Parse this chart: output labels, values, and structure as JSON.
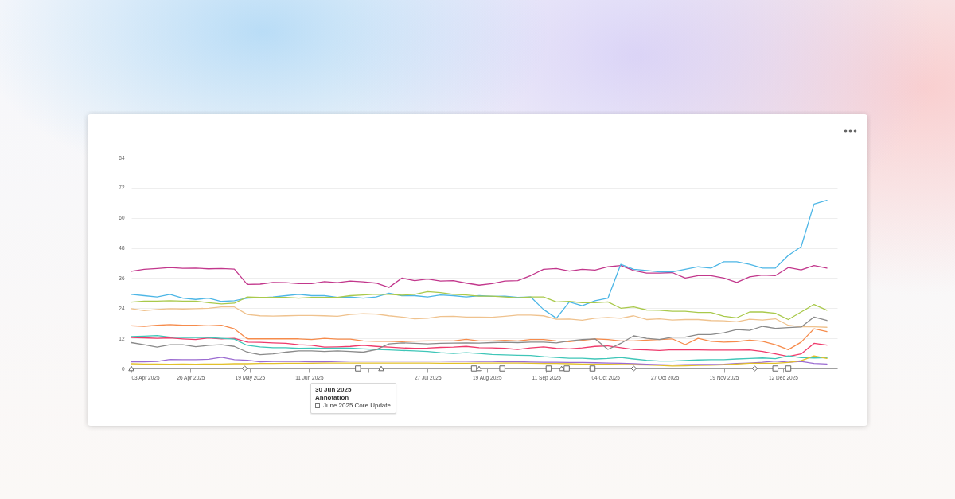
{
  "chart_data": {
    "type": "line",
    "x": [
      "2025-04-03",
      "2025-04-08",
      "2025-04-13",
      "2025-04-18",
      "2025-04-23",
      "2025-04-28",
      "2025-05-03",
      "2025-05-08",
      "2025-05-13",
      "2025-05-18",
      "2025-05-23",
      "2025-05-28",
      "2025-06-02",
      "2025-06-07",
      "2025-06-12",
      "2025-06-17",
      "2025-06-22",
      "2025-06-27",
      "2025-07-02",
      "2025-07-07",
      "2025-07-12",
      "2025-07-17",
      "2025-07-22",
      "2025-07-27",
      "2025-08-01",
      "2025-08-06",
      "2025-08-11",
      "2025-08-16",
      "2025-08-21",
      "2025-08-26",
      "2025-08-31",
      "2025-09-05",
      "2025-09-10",
      "2025-09-15",
      "2025-09-20",
      "2025-09-25",
      "2025-09-30",
      "2025-10-05",
      "2025-10-10",
      "2025-10-15",
      "2025-10-20",
      "2025-10-25",
      "2025-10-30",
      "2025-11-04",
      "2025-11-09",
      "2025-11-14",
      "2025-11-19",
      "2025-11-24",
      "2025-11-29",
      "2025-12-04",
      "2025-12-09",
      "2025-12-14",
      "2025-12-19",
      "2025-12-24",
      "2025-12-29"
    ],
    "series": [
      {
        "color": "#c2378c",
        "values": [
          38.7,
          39.5,
          39.8,
          40.2,
          39.9,
          40,
          39.7,
          39.8,
          39.6,
          33.5,
          33.6,
          34.3,
          34.2,
          33.8,
          33.8,
          34.6,
          34.2,
          34.8,
          34.5,
          34,
          32.3,
          36,
          35,
          35.6,
          34.8,
          35,
          34,
          33.2,
          33.8,
          34.8,
          35,
          37,
          39.5,
          39.8,
          38.8,
          39.5,
          39.2,
          40.5,
          41,
          39,
          38,
          38,
          38.2,
          36,
          37,
          37,
          36,
          34.3,
          36.5,
          37.2,
          37,
          40.2,
          39.3,
          41,
          40
        ]
      },
      {
        "color": "#4db6e6",
        "values": [
          29.5,
          29,
          28.5,
          29.5,
          28,
          27.5,
          28,
          26.7,
          27,
          28,
          28.2,
          28.5,
          29,
          29.5,
          29,
          29,
          28.3,
          28.5,
          28,
          28.5,
          30,
          29,
          29,
          28.5,
          29.3,
          29,
          28.5,
          29,
          28.7,
          28.8,
          28.3,
          28.5,
          23.5,
          20,
          26.5,
          25,
          27,
          28,
          41.5,
          39.5,
          39,
          38.5,
          38.5,
          39.5,
          40.5,
          40,
          42.5,
          42.5,
          41.5,
          40,
          40,
          45,
          48.5,
          65.5,
          67
        ]
      },
      {
        "color": "#a9c94b",
        "values": [
          26.4,
          26.8,
          26.8,
          27,
          26.8,
          26.8,
          26.2,
          25.7,
          26,
          28.5,
          28.3,
          28.3,
          28.3,
          28,
          28.3,
          28.3,
          28.3,
          29,
          29.3,
          29.6,
          29.5,
          29.2,
          29.5,
          30.6,
          30.2,
          29.5,
          29.3,
          28.8,
          28.8,
          28.5,
          28.2,
          28.5,
          28.5,
          26.5,
          26.7,
          26.2,
          26.2,
          26.5,
          24,
          24.5,
          23.3,
          23.2,
          22.8,
          22.8,
          22.3,
          22.3,
          20.8,
          20.2,
          22.5,
          22.5,
          22,
          19.5,
          22.5,
          25.5,
          23.2
        ]
      },
      {
        "color": "#efc28e",
        "values": [
          23.8,
          23,
          23.5,
          23.8,
          23.7,
          23.8,
          24,
          24.5,
          24.5,
          21.5,
          21,
          20.9,
          21,
          21.1,
          21.1,
          21,
          20.8,
          21.5,
          21.8,
          21.7,
          21,
          20.5,
          19.8,
          20,
          20.7,
          20.8,
          20.5,
          20.5,
          20.4,
          20.8,
          21.3,
          21.3,
          21,
          19.6,
          19.7,
          19.2,
          20,
          20.3,
          20,
          21,
          19.5,
          19.8,
          19.3,
          19.5,
          19.5,
          19.1,
          19,
          18.6,
          19.6,
          19.3,
          19.8,
          17.2,
          16.6,
          16.6,
          16.4
        ]
      },
      {
        "color": "#f68b4b",
        "values": [
          17,
          16.8,
          17.2,
          17.5,
          17.2,
          17.2,
          17,
          17.2,
          15.8,
          11.8,
          11.8,
          11.8,
          11.8,
          11.8,
          11.5,
          12,
          11.7,
          11.7,
          11,
          10.8,
          10.8,
          10.7,
          10.9,
          11,
          11,
          11,
          11.6,
          11,
          11,
          11.2,
          11,
          11.5,
          11.5,
          11,
          10.7,
          11.2,
          11.8,
          11.5,
          11,
          11,
          11.3,
          11.5,
          11.8,
          9.5,
          12,
          10.8,
          10.5,
          10.7,
          11.3,
          10.8,
          9.5,
          7.5,
          10.5,
          15.8,
          14.7
        ]
      },
      {
        "color": "#ef3a6b",
        "values": [
          12.3,
          12.2,
          12,
          12.2,
          11.8,
          11.5,
          12.2,
          11.8,
          12,
          10.5,
          10.4,
          10.2,
          10,
          9.5,
          9.2,
          8.5,
          8.6,
          8.8,
          9.2,
          8.8,
          8.5,
          8.2,
          8,
          8.1,
          8.4,
          8.5,
          8.8,
          8.3,
          8.2,
          8,
          7.6,
          8.2,
          8.6,
          8,
          7.8,
          8.2,
          8.8,
          9,
          8.3,
          7.6,
          7.4,
          7.2,
          7.5,
          7.4,
          7.4,
          7.3,
          7.3,
          7.3,
          7.4,
          6.8,
          5.8,
          4.8,
          5.8,
          10,
          9.3
        ]
      },
      {
        "color": "#3fc6b8",
        "values": [
          12.7,
          12.9,
          13.1,
          12.5,
          12.3,
          12.3,
          12.3,
          12,
          11.7,
          9.2,
          8.6,
          8.3,
          8.3,
          8,
          8.1,
          8,
          8.1,
          8.1,
          7.8,
          7.6,
          7.4,
          7.2,
          7,
          6.8,
          6.3,
          6,
          6.3,
          6,
          5.6,
          5.4,
          5.3,
          5.2,
          4.7,
          4.4,
          4.1,
          4.1,
          3.8,
          4,
          4.4,
          3.8,
          3.3,
          3,
          3,
          3.2,
          3.4,
          3.5,
          3.5,
          3.8,
          4,
          4.2,
          3.9,
          5,
          4.3,
          4.2,
          4.3
        ]
      },
      {
        "color": "#8a8a8a",
        "values": [
          10.3,
          9.5,
          8.5,
          9.5,
          9.5,
          8.7,
          9.2,
          9.5,
          8.8,
          6.5,
          5.5,
          5.8,
          6.5,
          7,
          7,
          6.8,
          7,
          6.8,
          6.5,
          7.5,
          9.8,
          10.2,
          10,
          9.8,
          10,
          10.1,
          10.2,
          10.1,
          10.3,
          10.4,
          10.3,
          10.5,
          10.5,
          10.2,
          11,
          11.5,
          11.8,
          7.6,
          10,
          13,
          12,
          11.5,
          12.5,
          12.5,
          13.5,
          13.5,
          14.2,
          15.5,
          15.2,
          16.8,
          16,
          16.3,
          16.5,
          20.5,
          19.1
        ]
      },
      {
        "color": "#9b6bd1",
        "values": [
          2.7,
          2.7,
          2.8,
          3.6,
          3.5,
          3.5,
          3.7,
          4.5,
          3.5,
          3.3,
          2.7,
          2.8,
          2.9,
          2.8,
          2.7,
          2.7,
          2.8,
          3,
          3,
          3,
          3,
          3,
          3,
          3,
          3,
          2.9,
          2.9,
          2.8,
          2.8,
          2.7,
          2.7,
          2.6,
          2.5,
          2.5,
          2.4,
          2.4,
          2.3,
          2.2,
          2.1,
          1.9,
          1.7,
          1.5,
          1.4,
          1.5,
          1.6,
          1.6,
          1.7,
          2,
          2.2,
          2.5,
          3,
          2.5,
          2.8,
          2,
          1.8
        ]
      },
      {
        "color": "#e2c02a",
        "values": [
          1.9,
          1.8,
          1.8,
          1.7,
          1.8,
          1.7,
          1.8,
          1.8,
          1.9,
          1.9,
          2,
          2,
          2.1,
          2.1,
          2.1,
          2.2,
          2.2,
          2.2,
          2.2,
          2.2,
          2.2,
          2.2,
          2.2,
          2.2,
          2.1,
          2.1,
          2.1,
          2.2,
          2.2,
          2.2,
          2.2,
          2.1,
          2,
          2,
          1.9,
          1.8,
          1.7,
          1.7,
          1.6,
          1.5,
          1.4,
          1.2,
          1,
          1.1,
          1.2,
          1.3,
          1.5,
          1.8,
          2.1,
          2.1,
          2.1,
          2.4,
          3.1,
          5,
          4
        ]
      },
      {
        "type": "scatter",
        "marker": "triangle",
        "color": "#666666",
        "x": [
          "2025-04-03",
          "2025-07-09",
          "2025-08-16",
          "2025-09-17"
        ],
        "values": [
          0,
          0,
          0,
          0
        ]
      },
      {
        "type": "scatter",
        "marker": "diamond",
        "color": "#666666",
        "x": [
          "2025-05-17",
          "2025-10-15",
          "2025-12-01"
        ],
        "values": [
          0,
          0,
          0
        ]
      },
      {
        "type": "scatter",
        "marker": "square",
        "color": "#666666",
        "x": [
          "2025-06-30",
          "2025-08-14",
          "2025-08-25",
          "2025-09-12",
          "2025-09-19",
          "2025-09-29",
          "2025-12-09",
          "2025-12-14"
        ],
        "values": [
          0,
          0,
          0,
          0,
          0,
          0,
          0,
          0
        ]
      }
    ],
    "xlim": [
      "2025-04-03",
      "2026-01-02"
    ],
    "xticks": [
      {
        "value": "2025-04-03",
        "label": "03 Apr 2025"
      },
      {
        "value": "2025-04-26",
        "label": "26 Apr 2025"
      },
      {
        "value": "2025-05-19",
        "label": "19 May 2025"
      },
      {
        "value": "2025-06-11",
        "label": "11 Jun 2025"
      },
      {
        "value": "2025-07-04",
        "label": null
      },
      {
        "value": "2025-07-27",
        "label": "27 Jul 2025"
      },
      {
        "value": "2025-08-19",
        "label": "19 Aug 2025"
      },
      {
        "value": "2025-09-11",
        "label": "11 Sep 2025"
      },
      {
        "value": "2025-10-04",
        "label": "04 Oct 2025"
      },
      {
        "value": "2025-10-27",
        "label": "27 Oct 2025"
      },
      {
        "value": "2025-11-19",
        "label": "19 Nov 2025"
      },
      {
        "value": "2025-12-12",
        "label": "12 Dec 2025"
      }
    ],
    "ylim": [
      0,
      84
    ],
    "yticks": [
      0,
      12,
      24,
      36,
      48,
      60,
      72,
      84
    ],
    "grid": "y",
    "annotations": [
      "30 Jun 2025",
      "Annotation",
      "June 2025 Core Update"
    ]
  }
}
